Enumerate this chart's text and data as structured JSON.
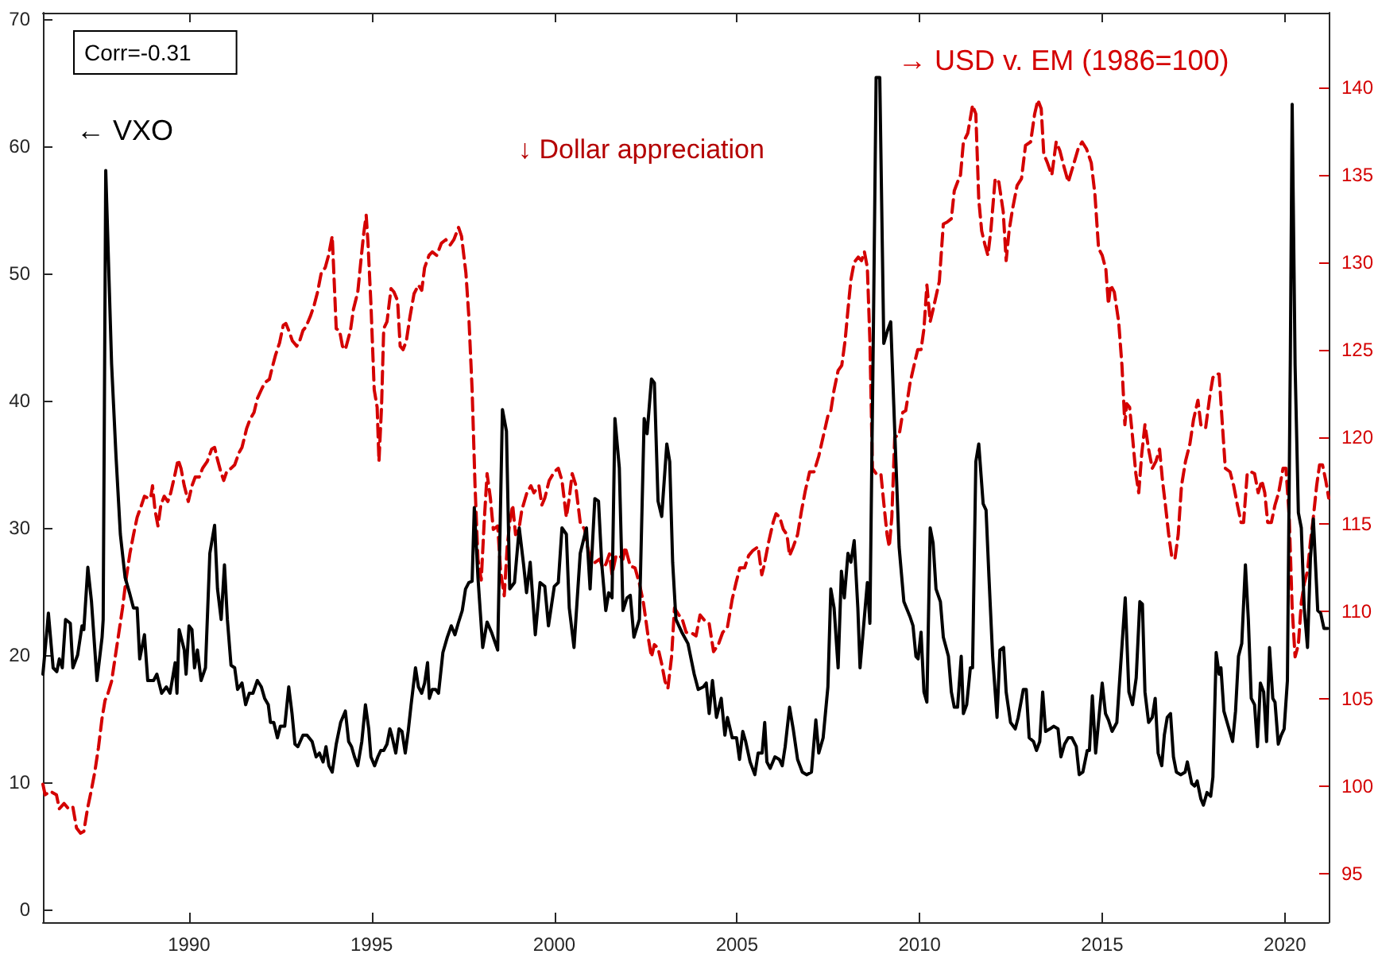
{
  "chart_data": {
    "type": "line",
    "xlim": [
      1986,
      2021.2
    ],
    "xticks": [
      1990,
      1995,
      2000,
      2005,
      2010,
      2015,
      2020
    ],
    "ylim": [
      -1,
      70.5
    ],
    "yticks": [
      0,
      10,
      20,
      30,
      40,
      50,
      60,
      70
    ],
    "y2lim": [
      92.2,
      144.3
    ],
    "y2ticks": [
      95,
      100,
      105,
      110,
      115,
      120,
      125,
      130,
      135,
      140
    ],
    "grid": false,
    "legend": false,
    "marker": "none",
    "annotations": [
      "Corr=-0.31",
      "↓ Dollar appreciation"
    ],
    "series": [
      {
        "name": "← VXO",
        "color": "#000000",
        "line_style": "solid",
        "x": [
          1986,
          1986.12,
          1986.15,
          1986.28,
          1986.38,
          1986.45,
          1986.53,
          1986.62,
          1986.75,
          1986.82,
          1986.95,
          1987.07,
          1987.12,
          1987.23,
          1987.33,
          1987.48,
          1987.62,
          1987.65,
          1987.72,
          1987.88,
          1988.0,
          1988.12,
          1988.25,
          1988.37,
          1988.48,
          1988.58,
          1988.65,
          1988.78,
          1988.87,
          1989.03,
          1989.12,
          1989.25,
          1989.38,
          1989.48,
          1989.62,
          1989.67,
          1989.73,
          1989.87,
          1989.92,
          1990.0,
          1990.08,
          1990.15,
          1990.23,
          1990.33,
          1990.45,
          1990.57,
          1990.7,
          1990.78,
          1990.88,
          1990.97,
          1991.05,
          1991.15,
          1991.25,
          1991.33,
          1991.45,
          1991.55,
          1991.65,
          1991.75,
          1991.87,
          1991.98,
          1992.07,
          1992.17,
          1992.23,
          1992.32,
          1992.42,
          1992.5,
          1992.62,
          1992.73,
          1992.82,
          1992.9,
          1992.98,
          1993.12,
          1993.23,
          1993.37,
          1993.48,
          1993.57,
          1993.67,
          1993.75,
          1993.83,
          1993.92,
          1994.03,
          1994.15,
          1994.28,
          1994.37,
          1994.45,
          1994.53,
          1994.62,
          1994.73,
          1994.83,
          1994.92,
          1994.98,
          1995.08,
          1995.17,
          1995.25,
          1995.33,
          1995.42,
          1995.5,
          1995.55,
          1995.66,
          1995.75,
          1995.83,
          1995.92,
          1996.0,
          1996.08,
          1996.2,
          1996.28,
          1996.37,
          1996.45,
          1996.53,
          1996.58,
          1996.66,
          1996.75,
          1996.83,
          1996.95,
          1997.07,
          1997.18,
          1997.28,
          1997.37,
          1997.48,
          1997.57,
          1997.66,
          1997.75,
          1997.81,
          1997.91,
          1998.04,
          1998.16,
          1998.28,
          1998.45,
          1998.58,
          1998.69,
          1998.78,
          1998.91,
          1999.04,
          1999.16,
          1999.24,
          1999.34,
          1999.48,
          1999.61,
          1999.74,
          1999.84,
          2000.0,
          2000.11,
          2000.21,
          2000.33,
          2000.41,
          2000.54,
          2000.71,
          2000.88,
          2000.98,
          2001.11,
          2001.21,
          2001.3,
          2001.41,
          2001.49,
          2001.58,
          2001.66,
          2001.78,
          2001.88,
          2001.99,
          2002.08,
          2002.18,
          2002.33,
          2002.46,
          2002.54,
          2002.66,
          2002.74,
          2002.84,
          2002.94,
          2003.08,
          2003.16,
          2003.24,
          2003.33,
          2003.49,
          2003.66,
          2003.83,
          2003.94,
          2004.08,
          2004.16,
          2004.24,
          2004.33,
          2004.44,
          2004.57,
          2004.67,
          2004.74,
          2004.87,
          2004.99,
          2005.07,
          2005.16,
          2005.24,
          2005.36,
          2005.49,
          2005.58,
          2005.69,
          2005.76,
          2005.82,
          2005.91,
          2006.04,
          2006.16,
          2006.24,
          2006.32,
          2006.44,
          2006.54,
          2006.66,
          2006.79,
          2006.91,
          2007.04,
          2007.16,
          2007.24,
          2007.36,
          2007.49,
          2007.57,
          2007.66,
          2007.77,
          2007.86,
          2007.94,
          2008.04,
          2008.12,
          2008.21,
          2008.31,
          2008.37,
          2008.51,
          2008.57,
          2008.64,
          2008.74,
          2008.81,
          2008.91,
          2009.02,
          2009.12,
          2009.21,
          2009.32,
          2009.44,
          2009.57,
          2009.74,
          2009.82,
          2009.9,
          2009.96,
          2010.04,
          2010.12,
          2010.2,
          2010.29,
          2010.37,
          2010.45,
          2010.57,
          2010.65,
          2010.79,
          2010.87,
          2010.95,
          2011.04,
          2011.14,
          2011.2,
          2011.29,
          2011.39,
          2011.45,
          2011.54,
          2011.62,
          2011.74,
          2011.82,
          2011.9,
          2012.0,
          2012.12,
          2012.2,
          2012.3,
          2012.37,
          2012.49,
          2012.62,
          2012.7,
          2012.84,
          2012.92,
          2013.0,
          2013.12,
          2013.2,
          2013.29,
          2013.37,
          2013.45,
          2013.57,
          2013.67,
          2013.79,
          2013.87,
          2013.97,
          2014.07,
          2014.17,
          2014.29,
          2014.37,
          2014.47,
          2014.59,
          2014.65,
          2014.73,
          2014.82,
          2014.92,
          2015.0,
          2015.09,
          2015.17,
          2015.27,
          2015.4,
          2015.5,
          2015.63,
          2015.73,
          2015.83,
          2015.93,
          2016.03,
          2016.1,
          2016.17,
          2016.27,
          2016.37,
          2016.45,
          2016.53,
          2016.63,
          2016.7,
          2016.78,
          2016.87,
          2016.95,
          2017.03,
          2017.15,
          2017.27,
          2017.33,
          2017.45,
          2017.53,
          2017.6,
          2017.7,
          2017.77,
          2017.87,
          2017.97,
          2018.03,
          2018.12,
          2018.2,
          2018.25,
          2018.33,
          2018.47,
          2018.57,
          2018.65,
          2018.73,
          2018.82,
          2018.92,
          2019.0,
          2019.08,
          2019.17,
          2019.25,
          2019.33,
          2019.42,
          2019.5,
          2019.58,
          2019.67,
          2019.73,
          2019.82,
          2019.9,
          2019.98,
          2020.07,
          2020.15,
          2020.2,
          2020.28,
          2020.37,
          2020.45,
          2020.53,
          2020.62,
          2020.7,
          2020.78,
          2020.9,
          2020.98,
          2021.07,
          2021.17
        ],
        "values": [
          18.5,
          22.3,
          23.3,
          19,
          18.7,
          19.7,
          19,
          22.8,
          22.5,
          19,
          20,
          22.3,
          22,
          26.9,
          24.2,
          18,
          21.4,
          22.8,
          58.1,
          42.9,
          35.7,
          29.5,
          26.1,
          24.9,
          23.7,
          23.7,
          19.7,
          21.6,
          18,
          18,
          18.5,
          17,
          17.5,
          17,
          19.4,
          17,
          22,
          20.4,
          18.5,
          22.3,
          22,
          19,
          20.4,
          18,
          19,
          28,
          30.2,
          25.2,
          22.8,
          27.1,
          22.8,
          19.2,
          19,
          17.3,
          17.8,
          16.1,
          17,
          17,
          18,
          17.5,
          16.6,
          16.1,
          14.7,
          14.7,
          13.5,
          14.4,
          14.4,
          17.5,
          15.4,
          13,
          12.8,
          13.7,
          13.7,
          13.2,
          12,
          12.3,
          11.6,
          12.8,
          11.3,
          10.8,
          13,
          14.7,
          15.6,
          13.2,
          12.8,
          12,
          11.3,
          13.2,
          16.1,
          14.2,
          12,
          11.3,
          12,
          12.5,
          12.5,
          13,
          14.2,
          13.7,
          12.3,
          14.2,
          14,
          12.3,
          14,
          16.1,
          19,
          17.5,
          17,
          17.8,
          19.4,
          16.6,
          17.3,
          17.3,
          17,
          20.2,
          21.4,
          22.3,
          21.6,
          22.5,
          23.5,
          25.2,
          25.7,
          25.8,
          31.6,
          26.1,
          20.6,
          22.6,
          21.8,
          20.4,
          39.3,
          37.6,
          25.2,
          25.7,
          30,
          27.1,
          24.9,
          27.3,
          21.6,
          25.7,
          25.4,
          22.3,
          25.4,
          25.7,
          30,
          29.5,
          23.7,
          20.6,
          28,
          30,
          25.2,
          32.3,
          32.1,
          27.1,
          23.5,
          24.9,
          24.5,
          38.6,
          34.7,
          23.5,
          24.5,
          24.7,
          21.4,
          22.8,
          38.6,
          37.4,
          41.7,
          41.4,
          32.1,
          30.9,
          36.6,
          35.2,
          27.3,
          22.8,
          21.8,
          20.9,
          18.5,
          17.3,
          17.5,
          17.8,
          15.4,
          18,
          15.1,
          16.6,
          13.7,
          15.1,
          13.5,
          13.5,
          11.8,
          14,
          13.2,
          11.6,
          10.6,
          12.3,
          12.3,
          14.7,
          11.6,
          11.1,
          12,
          11.8,
          11.3,
          12.8,
          15.9,
          14.2,
          11.8,
          10.8,
          10.6,
          10.8,
          14.9,
          12.3,
          13.5,
          17.5,
          25.2,
          23.7,
          19,
          26.6,
          24.5,
          28,
          27.3,
          29,
          23.7,
          19,
          23.7,
          25.7,
          22.5,
          46.7,
          65.4,
          65.4,
          44.5,
          45.5,
          46.2,
          37.6,
          28.5,
          24.2,
          23,
          22.3,
          19.9,
          19.7,
          21.8,
          17.1,
          16.3,
          30,
          28.8,
          25.2,
          24.2,
          21.4,
          19.9,
          17.1,
          15.9,
          15.9,
          19.9,
          15.4,
          16.1,
          19,
          19,
          35.2,
          36.6,
          31.9,
          31.4,
          26.1,
          19.9,
          15.1,
          20.4,
          20.6,
          17.1,
          14.7,
          14.2,
          15.1,
          17.3,
          17.3,
          13.5,
          13.2,
          12.5,
          13.2,
          17.1,
          14,
          14.2,
          14.4,
          14.2,
          12,
          13,
          13.5,
          13.5,
          12.8,
          10.6,
          10.8,
          12.5,
          12.5,
          16.8,
          12.3,
          15.4,
          17.8,
          15.4,
          14.9,
          14,
          14.7,
          19,
          24.5,
          17.1,
          16.1,
          18.2,
          24.2,
          24,
          17.1,
          14.7,
          15.1,
          16.6,
          12.3,
          11.3,
          13.7,
          15.1,
          15.4,
          12,
          10.8,
          10.6,
          10.8,
          11.6,
          9.9,
          9.7,
          10.1,
          8.7,
          8.2,
          9.2,
          8.9,
          10.4,
          20.2,
          18.5,
          19,
          15.6,
          14.2,
          13.2,
          15.6,
          19.9,
          20.9,
          27.1,
          22.8,
          16.6,
          16.1,
          12.8,
          17.8,
          17.1,
          13.2,
          20.6,
          16.6,
          16.3,
          13,
          13.7,
          14.2,
          18,
          43.3,
          63.3,
          42.8,
          31.2,
          30,
          23.7,
          20.6,
          27.6,
          30.7,
          23.5,
          23.3,
          22.1,
          22.1
        ]
      },
      {
        "name": "→ USD v. EM (1986=100)",
        "color": "#d40000",
        "line_style": "dashed",
        "axis": "y2",
        "x": [
          1986,
          1986.06,
          1986.2,
          1986.37,
          1986.45,
          1986.58,
          1986.7,
          1986.82,
          1986.92,
          1987.03,
          1987.12,
          1987.22,
          1987.32,
          1987.42,
          1987.52,
          1987.62,
          1987.7,
          1987.78,
          1987.88,
          1987.98,
          1988.08,
          1988.18,
          1988.28,
          1988.38,
          1988.48,
          1988.58,
          1988.7,
          1988.78,
          1988.87,
          1988.95,
          1989.0,
          1989.07,
          1989.15,
          1989.23,
          1989.32,
          1989.42,
          1989.5,
          1989.62,
          1989.7,
          1989.78,
          1989.87,
          1989.98,
          1990.08,
          1990.17,
          1990.28,
          1990.37,
          1990.5,
          1990.62,
          1990.7,
          1990.78,
          1990.87,
          1990.95,
          1991.03,
          1991.15,
          1991.25,
          1991.37,
          1991.45,
          1991.58,
          1991.67,
          1991.78,
          1991.87,
          1991.98,
          1992.07,
          1992.2,
          1992.28,
          1992.37,
          1992.48,
          1992.58,
          1992.65,
          1992.73,
          1992.83,
          1992.95,
          1993.03,
          1993.12,
          1993.2,
          1993.32,
          1993.42,
          1993.52,
          1993.62,
          1993.73,
          1993.82,
          1993.92,
          1993.95,
          1994.03,
          1994.12,
          1994.2,
          1994.28,
          1994.42,
          1994.5,
          1994.62,
          1994.72,
          1994.78,
          1994.85,
          1994.9,
          1994.98,
          1995.07,
          1995.15,
          1995.2,
          1995.27,
          1995.33,
          1995.42,
          1995.53,
          1995.61,
          1995.71,
          1995.78,
          1995.86,
          1995.95,
          1996.05,
          1996.16,
          1996.28,
          1996.37,
          1996.45,
          1996.57,
          1996.66,
          1996.78,
          1996.91,
          1997.03,
          1997.15,
          1997.25,
          1997.38,
          1997.46,
          1997.58,
          1997.66,
          1997.75,
          1997.83,
          1997.91,
          1998.0,
          1998.08,
          1998.16,
          1998.25,
          1998.33,
          1998.45,
          1998.53,
          1998.63,
          1998.71,
          1998.78,
          1998.86,
          1998.94,
          1999.03,
          1999.11,
          1999.25,
          1999.36,
          1999.44,
          1999.58,
          1999.66,
          1999.74,
          1999.86,
          2000.0,
          2000.11,
          2000.21,
          2000.33,
          2000.41,
          2000.49,
          2000.58,
          2000.71,
          2000.83,
          2000.91,
          2000.99,
          2001.11,
          2001.24,
          2001.33,
          2001.41,
          2001.51,
          2001.58,
          2001.69,
          2001.78,
          2001.88,
          2001.94,
          2002.08,
          2002.21,
          2002.33,
          2002.44,
          2002.58,
          2002.66,
          2002.74,
          2002.84,
          2002.94,
          2003.03,
          2003.11,
          2003.21,
          2003.29,
          2003.41,
          2003.51,
          2003.61,
          2003.74,
          2003.88,
          2003.99,
          2004.11,
          2004.24,
          2004.36,
          2004.49,
          2004.61,
          2004.74,
          2004.87,
          2004.97,
          2005.08,
          2005.21,
          2005.32,
          2005.44,
          2005.58,
          2005.68,
          2005.74,
          2005.87,
          2005.99,
          2006.07,
          2006.17,
          2006.27,
          2006.37,
          2006.44,
          2006.54,
          2006.66,
          2006.77,
          2006.87,
          2006.99,
          2007.11,
          2007.24,
          2007.37,
          2007.49,
          2007.57,
          2007.66,
          2007.77,
          2007.87,
          2007.96,
          2008.04,
          2008.12,
          2008.21,
          2008.32,
          2008.41,
          2008.49,
          2008.57,
          2008.64,
          2008.71,
          2008.81,
          2008.94,
          2009.04,
          2009.11,
          2009.17,
          2009.24,
          2009.32,
          2009.44,
          2009.54,
          2009.62,
          2009.74,
          2009.87,
          2009.95,
          2010.04,
          2010.12,
          2010.2,
          2010.29,
          2010.37,
          2010.54,
          2010.65,
          2010.75,
          2010.87,
          2010.95,
          2011.04,
          2011.12,
          2011.2,
          2011.32,
          2011.45,
          2011.54,
          2011.62,
          2011.7,
          2011.79,
          2011.87,
          2011.95,
          2012.07,
          2012.17,
          2012.29,
          2012.37,
          2012.45,
          2012.54,
          2012.67,
          2012.79,
          2012.9,
          2013.04,
          2013.15,
          2013.24,
          2013.33,
          2013.4,
          2013.5,
          2013.62,
          2013.74,
          2013.84,
          2013.95,
          2014.07,
          2014.2,
          2014.34,
          2014.45,
          2014.57,
          2014.7,
          2014.8,
          2014.9,
          2015.0,
          2015.1,
          2015.17,
          2015.23,
          2015.33,
          2015.45,
          2015.54,
          2015.62,
          2015.67,
          2015.75,
          2015.83,
          2015.92,
          2016.0,
          2016.08,
          2016.17,
          2016.27,
          2016.37,
          2016.47,
          2016.57,
          2016.65,
          2016.73,
          2016.82,
          2016.9,
          2016.99,
          2017.08,
          2017.17,
          2017.28,
          2017.4,
          2017.5,
          2017.62,
          2017.7,
          2017.83,
          2017.95,
          2018.03,
          2018.12,
          2018.2,
          2018.28,
          2018.37,
          2018.5,
          2018.6,
          2018.7,
          2018.8,
          2018.87,
          2018.97,
          2019.07,
          2019.17,
          2019.27,
          2019.37,
          2019.45,
          2019.53,
          2019.63,
          2019.73,
          2019.83,
          2019.95,
          2020.03,
          2020.12,
          2020.2,
          2020.28,
          2020.37,
          2020.45,
          2020.53,
          2020.62,
          2020.7,
          2020.78,
          2020.87,
          2020.95,
          2021.03,
          2021.12,
          2021.2
        ],
        "values": [
          100.1,
          99.5,
          99.7,
          99.5,
          98.7,
          99,
          98.7,
          98.8,
          97.6,
          97.3,
          97.4,
          98.7,
          99.7,
          100.8,
          102.2,
          103.9,
          104.9,
          105.3,
          106,
          107.4,
          108.8,
          110.2,
          111.9,
          113.3,
          114.4,
          115.4,
          116.1,
          116.6,
          116.5,
          116.5,
          117.2,
          115.8,
          114.9,
          116.1,
          116.6,
          116.3,
          116.8,
          117.9,
          118.7,
          118.2,
          117.2,
          116.3,
          117.2,
          117.7,
          117.7,
          118.2,
          118.6,
          119.3,
          119.4,
          118.7,
          118,
          117.5,
          118,
          118.2,
          118.4,
          119.1,
          119.4,
          120.5,
          121,
          121.4,
          122.2,
          122.7,
          123.1,
          123.3,
          124,
          124.7,
          125.4,
          126.4,
          126.5,
          126.1,
          125.5,
          125.2,
          125.5,
          126.1,
          126.3,
          126.9,
          127.5,
          128.3,
          129.4,
          129.7,
          130.4,
          131.5,
          130.1,
          126.2,
          126.1,
          125.2,
          125,
          126.1,
          127.3,
          128.3,
          130.4,
          131.6,
          132.7,
          131.1,
          127.6,
          122.7,
          121.7,
          118.6,
          121.7,
          126.2,
          126.6,
          128.5,
          128.3,
          127.8,
          125.2,
          125,
          125.5,
          126.9,
          128.2,
          128.7,
          128.4,
          129.7,
          130.4,
          130.6,
          130.4,
          131.1,
          131.3,
          131,
          131.3,
          132,
          131.5,
          129.4,
          126.9,
          122.7,
          117.2,
          113,
          111.8,
          115.1,
          117.9,
          116.5,
          114.7,
          114.9,
          112.3,
          110.9,
          113.7,
          115.1,
          116.1,
          114.4,
          114.7,
          115.8,
          116.8,
          117.2,
          116.8,
          117.2,
          116.1,
          116.5,
          117.5,
          118,
          118.2,
          117.5,
          115.4,
          116.5,
          117.9,
          117.3,
          115.1,
          114.7,
          113.7,
          113,
          112.8,
          113,
          112.5,
          112.7,
          113.3,
          112.1,
          113.2,
          113.2,
          113,
          113.7,
          112.6,
          112.5,
          111.6,
          110.5,
          108.4,
          107.4,
          108.1,
          107.9,
          107,
          106,
          105.6,
          107.4,
          110.2,
          109.8,
          109.5,
          108.8,
          108.8,
          108.6,
          109.8,
          109.5,
          109.3,
          107.7,
          108.1,
          108.8,
          109.1,
          110.7,
          111.6,
          112.5,
          112.5,
          113.2,
          113.5,
          113.7,
          112.1,
          112.6,
          114,
          115.1,
          115.6,
          115.4,
          114.7,
          114.4,
          113.2,
          113.7,
          114.4,
          115.8,
          116.9,
          118,
          118,
          118.9,
          120.1,
          121.2,
          121.5,
          122.7,
          123.8,
          124.1,
          125.5,
          127.3,
          129,
          130,
          130.3,
          130.1,
          130.6,
          129.7,
          125.5,
          118.2,
          117.9,
          117.9,
          115.8,
          114.4,
          113.7,
          115.4,
          120,
          120.1,
          121.4,
          121.5,
          123.1,
          124.3,
          125,
          125,
          126.2,
          128.7,
          126.6,
          127.3,
          128.9,
          132.2,
          132.3,
          132.5,
          134.1,
          134.6,
          135,
          136.9,
          137.4,
          139,
          138.5,
          133.6,
          131.8,
          131,
          130.4,
          131.8,
          134.8,
          134.6,
          132.9,
          130.1,
          131.8,
          133,
          134.4,
          134.8,
          136.7,
          136.9,
          138.5,
          139.3,
          138.8,
          136.2,
          135.7,
          135,
          136.9,
          136.4,
          135.5,
          134.6,
          135.5,
          136.5,
          136.9,
          136.5,
          135.7,
          133.9,
          130.8,
          130.4,
          129.6,
          127.6,
          128.7,
          128.3,
          126.6,
          124.1,
          120.7,
          121.9,
          121.7,
          120,
          117.9,
          116.8,
          119,
          120.7,
          119.3,
          118.2,
          118.6,
          119.3,
          117.5,
          116.1,
          114.4,
          113.2,
          113,
          114.4,
          117.2,
          118.6,
          119.6,
          121,
          122.1,
          120.7,
          120.5,
          122.4,
          123.4,
          123.6,
          123.6,
          121,
          118.2,
          118,
          117.2,
          116.1,
          115.1,
          115.1,
          117.9,
          118,
          117.9,
          116.8,
          117.5,
          116.8,
          115.1,
          115.1,
          116.1,
          116.8,
          118.2,
          118.2,
          115.4,
          110.2,
          107.4,
          108.1,
          110.5,
          111.6,
          112.3,
          114,
          115.4,
          117.2,
          118.4,
          118.4,
          117.5,
          116.5
        ]
      }
    ]
  }
}
